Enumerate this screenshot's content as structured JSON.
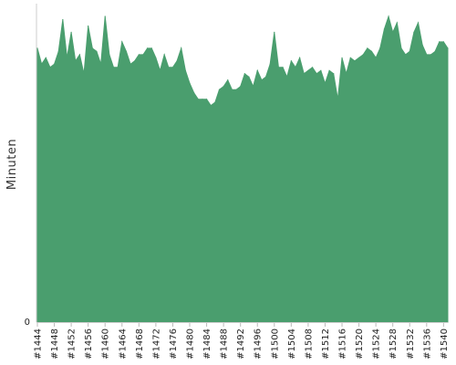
{
  "chart_data": {
    "type": "area",
    "xlabel": "",
    "ylabel": "Minuten",
    "ylim": [
      0,
      100
    ],
    "y_ticks": [
      {
        "value": 0,
        "label": "0"
      }
    ],
    "x_ticks": [
      {
        "value": 1444,
        "label": "#1444"
      },
      {
        "value": 1448,
        "label": "#1448"
      },
      {
        "value": 1452,
        "label": "#1452"
      },
      {
        "value": 1456,
        "label": "#1456"
      },
      {
        "value": 1460,
        "label": "#1460"
      },
      {
        "value": 1464,
        "label": "#1464"
      },
      {
        "value": 1468,
        "label": "#1468"
      },
      {
        "value": 1472,
        "label": "#1472"
      },
      {
        "value": 1476,
        "label": "#1476"
      },
      {
        "value": 1480,
        "label": "#1480"
      },
      {
        "value": 1484,
        "label": "#1484"
      },
      {
        "value": 1488,
        "label": "#1488"
      },
      {
        "value": 1492,
        "label": "#1492"
      },
      {
        "value": 1496,
        "label": "#1496"
      },
      {
        "value": 1500,
        "label": "#1500"
      },
      {
        "value": 1504,
        "label": "#1504"
      },
      {
        "value": 1508,
        "label": "#1508"
      },
      {
        "value": 1512,
        "label": "#1512"
      },
      {
        "value": 1516,
        "label": "#1516"
      },
      {
        "value": 1520,
        "label": "#1520"
      },
      {
        "value": 1524,
        "label": "#1524"
      },
      {
        "value": 1528,
        "label": "#1528"
      },
      {
        "value": 1532,
        "label": "#1532"
      },
      {
        "value": 1536,
        "label": "#1536"
      },
      {
        "value": 1540,
        "label": "#1540"
      }
    ],
    "grid": false,
    "legend": "none",
    "series": [
      {
        "color": "#4a9e6e",
        "x": [
          1444,
          1445,
          1446,
          1447,
          1448,
          1449,
          1450,
          1451,
          1452,
          1453,
          1454,
          1455,
          1456,
          1457,
          1458,
          1459,
          1460,
          1461,
          1462,
          1463,
          1464,
          1465,
          1466,
          1467,
          1468,
          1469,
          1470,
          1471,
          1472,
          1473,
          1474,
          1475,
          1476,
          1477,
          1478,
          1479,
          1480,
          1481,
          1482,
          1483,
          1484,
          1485,
          1486,
          1487,
          1488,
          1489,
          1490,
          1491,
          1492,
          1493,
          1494,
          1495,
          1496,
          1497,
          1498,
          1499,
          1500,
          1501,
          1502,
          1503,
          1504,
          1505,
          1506,
          1507,
          1508,
          1509,
          1510,
          1511,
          1512,
          1513,
          1514,
          1515,
          1516,
          1517,
          1518,
          1519,
          1520,
          1521,
          1522,
          1523,
          1524,
          1525,
          1526,
          1527,
          1528,
          1529,
          1530,
          1531,
          1532,
          1533,
          1534,
          1535,
          1536,
          1537,
          1538,
          1539,
          1540,
          1541
        ],
        "values": [
          86,
          81,
          83,
          80,
          81,
          85,
          95,
          83,
          91,
          82,
          84,
          78,
          93,
          86,
          85,
          81,
          96,
          84,
          80,
          80,
          88,
          85,
          81,
          82,
          84,
          84,
          86,
          86,
          83,
          79,
          84,
          80,
          80,
          82,
          86,
          79,
          75,
          72,
          70,
          70,
          70,
          68,
          69,
          73,
          74,
          76,
          73,
          73,
          74,
          78,
          77,
          74,
          79,
          76,
          77,
          81,
          91,
          80,
          80,
          77,
          82,
          80,
          83,
          78,
          79,
          80,
          78,
          79,
          75,
          79,
          78,
          70,
          83,
          78,
          83,
          82,
          83,
          84,
          86,
          85,
          83,
          86,
          92,
          96,
          91,
          94,
          86,
          84,
          85,
          91,
          94,
          87,
          84,
          84,
          85,
          88,
          88,
          86
        ]
      }
    ]
  }
}
